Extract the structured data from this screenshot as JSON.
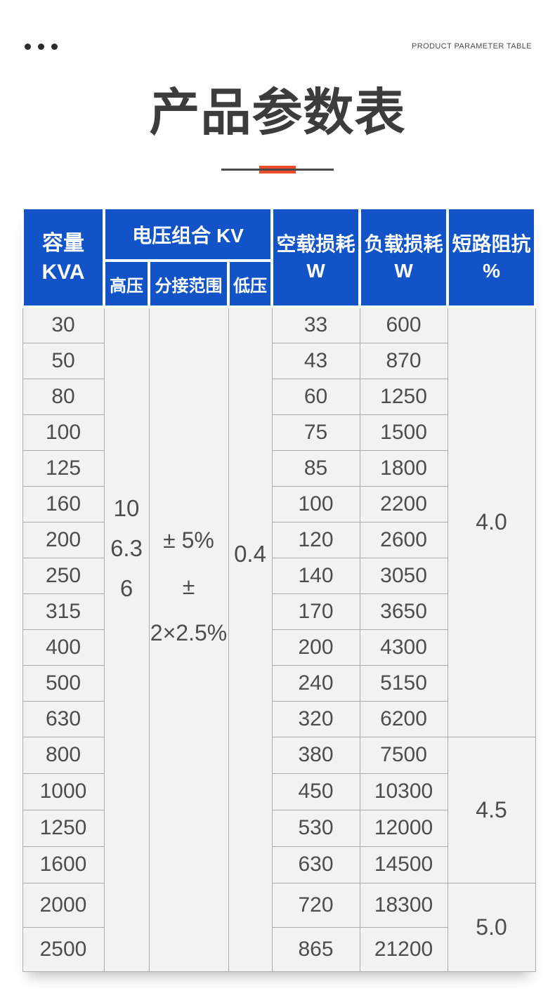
{
  "page": {
    "eyebrow": "PRODUCT PARAMETER TABLE",
    "title": "产品参数表"
  },
  "colors": {
    "header_blue": "#1254c8",
    "accent_red": "#ee4b27",
    "cell_bg": "#f2f2f2",
    "grid_line": "#ababab"
  },
  "table": {
    "header": {
      "capacity": [
        "容量",
        "KVA"
      ],
      "voltage_combo": "电压组合 KV",
      "high_voltage": "高压",
      "tap_range": "分接范围",
      "low_voltage": "低压",
      "no_load_loss": [
        "空载损耗",
        "W"
      ],
      "load_loss": [
        "负载损耗",
        "W"
      ],
      "impedance": [
        "短路阻抗",
        "%"
      ]
    },
    "merged": {
      "high_voltage_values": [
        "10",
        "6.3",
        "6"
      ],
      "tap_range_values": [
        "± 5%",
        "± 2×2.5%"
      ],
      "low_voltage_value": "0.4"
    },
    "rows": [
      {
        "kva": "30",
        "no_load": "33",
        "load": "600"
      },
      {
        "kva": "50",
        "no_load": "43",
        "load": "870"
      },
      {
        "kva": "80",
        "no_load": "60",
        "load": "1250"
      },
      {
        "kva": "100",
        "no_load": "75",
        "load": "1500"
      },
      {
        "kva": "125",
        "no_load": "85",
        "load": "1800"
      },
      {
        "kva": "160",
        "no_load": "100",
        "load": "2200"
      },
      {
        "kva": "200",
        "no_load": "120",
        "load": "2600"
      },
      {
        "kva": "250",
        "no_load": "140",
        "load": "3050"
      },
      {
        "kva": "315",
        "no_load": "170",
        "load": "3650"
      },
      {
        "kva": "400",
        "no_load": "200",
        "load": "4300"
      },
      {
        "kva": "500",
        "no_load": "240",
        "load": "5150"
      },
      {
        "kva": "630",
        "no_load": "320",
        "load": "6200"
      },
      {
        "kva": "800",
        "no_load": "380",
        "load": "7500"
      },
      {
        "kva": "1000",
        "no_load": "450",
        "load": "10300"
      },
      {
        "kva": "1250",
        "no_load": "530",
        "load": "12000"
      },
      {
        "kva": "1600",
        "no_load": "630",
        "load": "14500"
      },
      {
        "kva": "2000",
        "no_load": "720",
        "load": "18300"
      },
      {
        "kva": "2500",
        "no_load": "865",
        "load": "21200"
      }
    ],
    "impedance_groups": [
      {
        "value": "4.0",
        "span": 12
      },
      {
        "value": "4.5",
        "span": 4
      },
      {
        "value": "5.0",
        "span": 2
      }
    ]
  }
}
